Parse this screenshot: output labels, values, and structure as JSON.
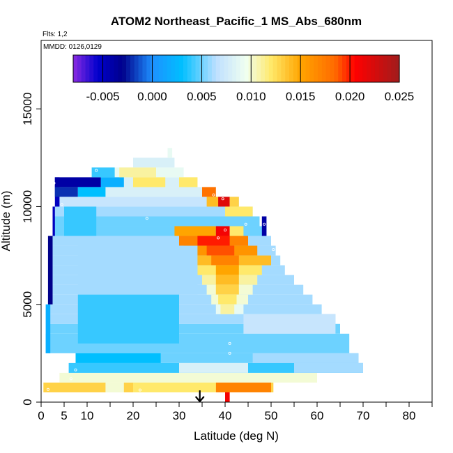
{
  "chart_data": {
    "type": "heatmap",
    "title": "ATOM2 Northeast_Pacific_1 MS_Abs_680nm",
    "annotations": [
      "Flts: 1,2",
      "MMDD: 0126,0129"
    ],
    "xlabel": "Latitude (deg N)",
    "ylabel": "Altitude (m)",
    "xlim": [
      0,
      85
    ],
    "ylim": [
      0,
      18500
    ],
    "x_ticks": [
      0,
      5,
      10,
      20,
      30,
      40,
      50,
      60,
      70,
      80
    ],
    "x_minor_ticks": [
      15,
      25,
      35,
      45,
      55,
      65,
      75,
      85
    ],
    "y_ticks": [
      0,
      5000,
      10000,
      15000
    ],
    "colorbar": {
      "range": [
        -0.008,
        0.025
      ],
      "ticks": [
        "-0.005",
        "0.000",
        "0.005",
        "0.010",
        "0.015",
        "0.020",
        "0.025"
      ],
      "tick_values": [
        -0.005,
        0.0,
        0.005,
        0.01,
        0.015,
        0.02,
        0.025
      ],
      "stops": [
        {
          "v": -0.008,
          "c": "#8a2be2"
        },
        {
          "v": -0.0055,
          "c": "#0000cd"
        },
        {
          "v": -0.003,
          "c": "#00008b"
        },
        {
          "v": 0.0,
          "c": "#1e90ff"
        },
        {
          "v": 0.003,
          "c": "#00bfff"
        },
        {
          "v": 0.0065,
          "c": "#bfe0ff"
        },
        {
          "v": 0.0095,
          "c": "#f0fff0"
        },
        {
          "v": 0.012,
          "c": "#ffe96b"
        },
        {
          "v": 0.015,
          "c": "#ffa500"
        },
        {
          "v": 0.0185,
          "c": "#ff6a00"
        },
        {
          "v": 0.0205,
          "c": "#ff0000"
        },
        {
          "v": 0.025,
          "c": "#a01c1c"
        }
      ]
    },
    "cells": [
      {
        "x0": 0.5,
        "x1": 50.5,
        "y0": 500,
        "y1": 1000,
        "v": 0.013
      },
      {
        "x0": 4.0,
        "x1": 60.0,
        "y0": 1000,
        "y1": 1500,
        "v": 0.01
      },
      {
        "x0": 6.0,
        "x1": 70.0,
        "y0": 1500,
        "y1": 2000,
        "v": 0.004
      },
      {
        "x0": 7.5,
        "x1": 69.0,
        "y0": 2000,
        "y1": 2500,
        "v": 0.005
      },
      {
        "x0": 1.0,
        "x1": 67.0,
        "y0": 2500,
        "y1": 3500,
        "v": 0.005
      },
      {
        "x0": 1.5,
        "x1": 65.0,
        "y0": 3500,
        "y1": 4000,
        "v": 0.005
      },
      {
        "x0": 1.5,
        "x1": 64.0,
        "y0": 4000,
        "y1": 4500,
        "v": 0.006
      },
      {
        "x0": 1.5,
        "x1": 61.0,
        "y0": 4500,
        "y1": 5000,
        "v": 0.006
      },
      {
        "x0": 1.5,
        "x1": 59.0,
        "y0": 5000,
        "y1": 5500,
        "v": 0.006
      },
      {
        "x0": 2.0,
        "x1": 57.0,
        "y0": 5500,
        "y1": 6000,
        "v": 0.006
      },
      {
        "x0": 2.0,
        "x1": 55.0,
        "y0": 6000,
        "y1": 6500,
        "v": 0.006
      },
      {
        "x0": 2.0,
        "x1": 53.0,
        "y0": 6500,
        "y1": 7000,
        "v": 0.006
      },
      {
        "x0": 2.0,
        "x1": 52.0,
        "y0": 7000,
        "y1": 7500,
        "v": 0.006
      },
      {
        "x0": 2.0,
        "x1": 51.0,
        "y0": 7500,
        "y1": 8000,
        "v": 0.006
      },
      {
        "x0": 2.5,
        "x1": 50.0,
        "y0": 8000,
        "y1": 8500,
        "v": 0.006
      },
      {
        "x0": 2.5,
        "x1": 49.0,
        "y0": 8500,
        "y1": 9000,
        "v": 0.005
      },
      {
        "x0": 2.5,
        "x1": 47.5,
        "y0": 9000,
        "y1": 9500,
        "v": 0.005
      },
      {
        "x0": 3.0,
        "x1": 46.0,
        "y0": 9500,
        "y1": 10000,
        "v": 0.006
      },
      {
        "x0": 3.0,
        "x1": 43.0,
        "y0": 10000,
        "y1": 10500,
        "v": 0.007
      },
      {
        "x0": 3.0,
        "x1": 38.0,
        "y0": 10500,
        "y1": 11000,
        "v": 0.008
      },
      {
        "x0": 3.0,
        "x1": 34.0,
        "y0": 11000,
        "y1": 11500,
        "v": 0.008
      },
      {
        "x0": 11.0,
        "x1": 31.0,
        "y0": 11500,
        "y1": 12000,
        "v": 0.009
      },
      {
        "x0": 20.0,
        "x1": 29.0,
        "y0": 12000,
        "y1": 12500,
        "v": 0.008
      },
      {
        "x0": 27.5,
        "x1": 28.5,
        "y0": 12500,
        "y1": 13000,
        "v": 0.009
      },
      {
        "x0": 38.0,
        "x1": 50.0,
        "y0": 500,
        "y1": 1000,
        "v": 0.017
      },
      {
        "x0": 20.0,
        "x1": 38.0,
        "y0": 500,
        "y1": 1000,
        "v": 0.012
      },
      {
        "x0": 14.0,
        "x1": 18.0,
        "y0": 500,
        "y1": 1000,
        "v": 0.01
      },
      {
        "x0": 40.0,
        "x1": 41.0,
        "y0": 0,
        "y1": 500,
        "v": 0.021
      },
      {
        "x0": 30.0,
        "x1": 45.0,
        "y0": 1500,
        "y1": 2000,
        "v": 0.008
      },
      {
        "x0": 55.0,
        "x1": 70.0,
        "y0": 1500,
        "y1": 2000,
        "v": 0.006
      },
      {
        "x0": 7.5,
        "x1": 26.0,
        "y0": 2000,
        "y1": 2500,
        "v": 0.003
      },
      {
        "x0": 46.0,
        "x1": 69.0,
        "y0": 2000,
        "y1": 2500,
        "v": 0.006
      },
      {
        "x0": 1.0,
        "x1": 2.0,
        "y0": 2500,
        "y1": 5000,
        "v": 0.002
      },
      {
        "x0": 1.5,
        "x1": 2.5,
        "y0": 5000,
        "y1": 8500,
        "v": -0.003
      },
      {
        "x0": 2.5,
        "x1": 3.0,
        "y0": 8500,
        "y1": 10000,
        "v": -0.005
      },
      {
        "x0": 3.0,
        "x1": 4.0,
        "y0": 10000,
        "y1": 11500,
        "v": -0.005
      },
      {
        "x0": 3.0,
        "x1": 13.0,
        "y0": 11000,
        "y1": 11500,
        "v": -0.004
      },
      {
        "x0": 13.0,
        "x1": 18.0,
        "y0": 11000,
        "y1": 11500,
        "v": 0.002
      },
      {
        "x0": 3.0,
        "x1": 8.0,
        "y0": 10500,
        "y1": 11000,
        "v": -0.002
      },
      {
        "x0": 8.0,
        "x1": 14.0,
        "y0": 10500,
        "y1": 11000,
        "v": 0.003
      },
      {
        "x0": 20.0,
        "x1": 27.0,
        "y0": 11000,
        "y1": 11500,
        "v": 0.012
      },
      {
        "x0": 17.0,
        "x1": 25.0,
        "y0": 11500,
        "y1": 12000,
        "v": 0.011
      },
      {
        "x0": 11.0,
        "x1": 16.0,
        "y0": 11500,
        "y1": 12000,
        "v": 0.004
      },
      {
        "x0": 30.0,
        "x1": 34.0,
        "y0": 11000,
        "y1": 11500,
        "v": 0.012
      },
      {
        "x0": 35.0,
        "x1": 38.0,
        "y0": 10500,
        "y1": 11000,
        "v": 0.018
      },
      {
        "x0": 36.0,
        "x1": 39.0,
        "y0": 10000,
        "y1": 10500,
        "v": 0.014
      },
      {
        "x0": 38.5,
        "x1": 41.0,
        "y0": 10000,
        "y1": 10500,
        "v": 0.022
      },
      {
        "x0": 41.0,
        "x1": 43.0,
        "y0": 10000,
        "y1": 10500,
        "v": 0.013
      },
      {
        "x0": 40.0,
        "x1": 46.0,
        "y0": 9500,
        "y1": 10000,
        "v": 0.012
      },
      {
        "x0": 29.0,
        "x1": 38.0,
        "y0": 8500,
        "y1": 9000,
        "v": 0.015
      },
      {
        "x0": 38.0,
        "x1": 41.0,
        "y0": 8500,
        "y1": 9000,
        "v": 0.021
      },
      {
        "x0": 41.0,
        "x1": 44.0,
        "y0": 8500,
        "y1": 9000,
        "v": 0.012
      },
      {
        "x0": 48.0,
        "x1": 49.0,
        "y0": 8500,
        "y1": 9500,
        "v": -0.004
      },
      {
        "x0": 30.0,
        "x1": 45.0,
        "y0": 8000,
        "y1": 8500,
        "v": 0.017
      },
      {
        "x0": 34.0,
        "x1": 41.0,
        "y0": 8000,
        "y1": 8500,
        "v": 0.02
      },
      {
        "x0": 31.0,
        "x1": 47.0,
        "y0": 7500,
        "y1": 8000,
        "v": 0.016
      },
      {
        "x0": 36.0,
        "x1": 42.0,
        "y0": 7500,
        "y1": 8000,
        "v": 0.019
      },
      {
        "x0": 33.0,
        "x1": 50.0,
        "y0": 7000,
        "y1": 7500,
        "v": 0.014
      },
      {
        "x0": 37.0,
        "x1": 43.0,
        "y0": 7000,
        "y1": 7500,
        "v": 0.017
      },
      {
        "x0": 34.0,
        "x1": 48.0,
        "y0": 6500,
        "y1": 7000,
        "v": 0.012
      },
      {
        "x0": 38.0,
        "x1": 43.0,
        "y0": 6500,
        "y1": 7000,
        "v": 0.015
      },
      {
        "x0": 35.0,
        "x1": 47.0,
        "y0": 6000,
        "y1": 6500,
        "v": 0.011
      },
      {
        "x0": 38.0,
        "x1": 43.0,
        "y0": 6000,
        "y1": 6500,
        "v": 0.014
      },
      {
        "x0": 36.0,
        "x1": 46.0,
        "y0": 5500,
        "y1": 6000,
        "v": 0.01
      },
      {
        "x0": 38.0,
        "x1": 43.0,
        "y0": 5500,
        "y1": 6000,
        "v": 0.013
      },
      {
        "x0": 37.0,
        "x1": 45.0,
        "y0": 5000,
        "y1": 5500,
        "v": 0.01
      },
      {
        "x0": 38.5,
        "x1": 42.5,
        "y0": 5000,
        "y1": 5500,
        "v": 0.012
      },
      {
        "x0": 38.0,
        "x1": 44.0,
        "y0": 4500,
        "y1": 5000,
        "v": 0.009
      },
      {
        "x0": 39.0,
        "x1": 42.0,
        "y0": 4500,
        "y1": 5000,
        "v": 0.011
      },
      {
        "x0": 44.0,
        "x1": 64.0,
        "y0": 3500,
        "y1": 4500,
        "v": 0.007
      },
      {
        "x0": 8.0,
        "x1": 34.0,
        "y0": 5500,
        "y1": 8000,
        "v": 0.006
      },
      {
        "x0": 8.0,
        "x1": 30.0,
        "y0": 3000,
        "y1": 5500,
        "v": 0.004
      },
      {
        "x0": 5.0,
        "x1": 12.0,
        "y0": 8500,
        "y1": 10000,
        "v": 0.004
      }
    ],
    "points": [
      {
        "x": 1.5,
        "y": 650
      },
      {
        "x": 6.5,
        "y": 1200
      },
      {
        "x": 7.5,
        "y": 1650
      },
      {
        "x": 21.5,
        "y": 620
      },
      {
        "x": 41.0,
        "y": 2500
      },
      {
        "x": 69.5,
        "y": 1280
      },
      {
        "x": 4.5,
        "y": 10100
      },
      {
        "x": 2.5,
        "y": 10700
      },
      {
        "x": 2.8,
        "y": 11200
      },
      {
        "x": 12.0,
        "y": 11850
      },
      {
        "x": 23.0,
        "y": 9400
      },
      {
        "x": 40.0,
        "y": 8800
      },
      {
        "x": 38.5,
        "y": 8400
      },
      {
        "x": 44.5,
        "y": 9100
      },
      {
        "x": 48.5,
        "y": 9100
      },
      {
        "x": 50.5,
        "y": 7800
      },
      {
        "x": 39.5,
        "y": 10400
      },
      {
        "x": 37.5,
        "y": 10600
      },
      {
        "x": 41.0,
        "y": 3000
      }
    ],
    "arrow": {
      "x": 34.5,
      "y_top": 600,
      "y_bottom": 0,
      "color": "#000000"
    }
  }
}
